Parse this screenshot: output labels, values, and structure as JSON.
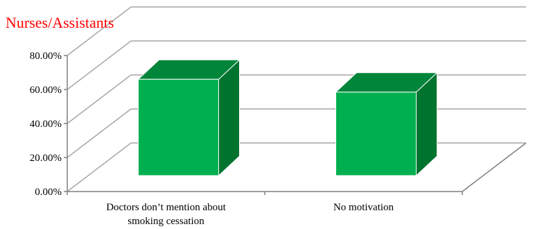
{
  "chart_data": {
    "type": "bar",
    "title": "Nurses/Assistants",
    "categories": [
      [
        "Doctors don’t mention about",
        "smoking cessation"
      ],
      [
        "No motivation"
      ]
    ],
    "values": [
      60.0,
      52.0
    ],
    "unit": "%",
    "ylim": [
      0,
      80
    ],
    "yticks": [
      "0.00%",
      "20.00%",
      "40.00%",
      "60.00%",
      "80.00%"
    ],
    "ytick_values": [
      0,
      20,
      40,
      60,
      80
    ],
    "grid": true,
    "style": "3d-column",
    "xlabel": "",
    "ylabel": ""
  },
  "colors": {
    "title": "#ff0000",
    "bar_front": "#00b050",
    "bar_side": "#00732f",
    "bar_top": "#00853a",
    "grid": "#a6a6a6",
    "axis": "#7f7f7f"
  }
}
